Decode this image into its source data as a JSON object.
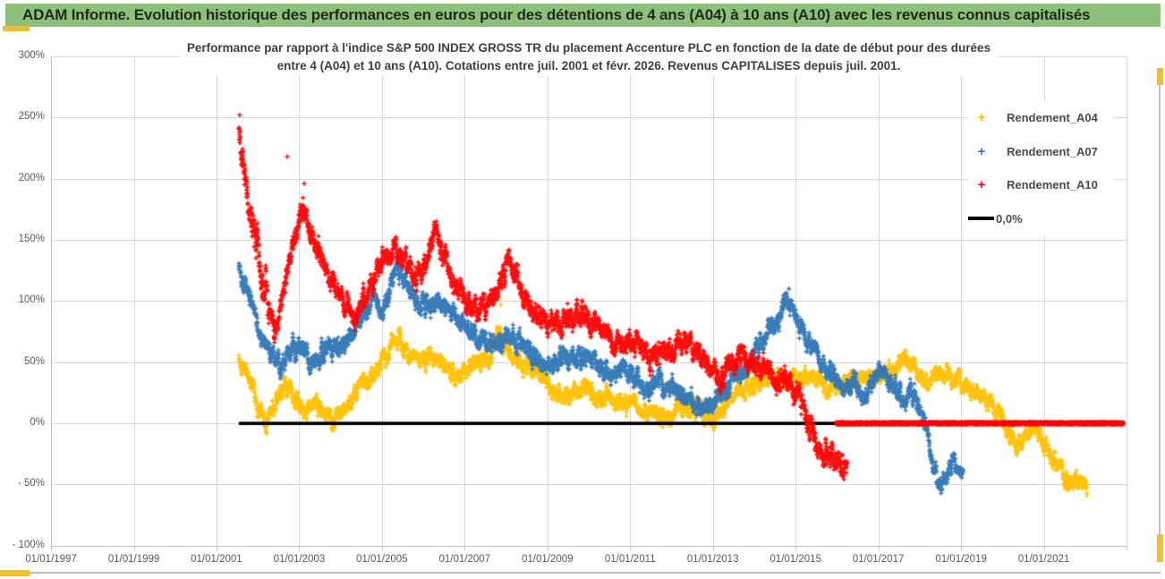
{
  "header": {
    "title": "ADAM Informe. Evolution historique des performances en euros pour des détentions de 4 ans (A04) à 10 ans (A10) avec les revenus connus capitalisés",
    "bg_color": "#8cc07b",
    "accent_color": "#f1be32"
  },
  "chart": {
    "title_line1": "Performance par rapport à l'indice S&P 500 INDEX GROSS TR  du placement Accenture PLC en fonction de la date de début pour des durées",
    "title_line2": "entre 4 (A04) et 10 ans (A10).  Cotations entre juil. 2001 et févr. 2026.  Revenus CAPITALISES depuis juil. 2001."
  },
  "chart_data": {
    "type": "scatter",
    "title": "Performance par rapport à l'indice S&P 500 INDEX GROSS TR du placement Accenture PLC en fonction de la date de début pour des durées entre 4 (A04) et 10 ans (A10). Cotations entre juil. 2001 et févr. 2026. Revenus CAPITALISES depuis juil. 2001.",
    "grid": true,
    "legend_position": "right",
    "x_axis": {
      "range": [
        1997,
        2023
      ],
      "grid_years": [
        1997,
        1999,
        2001,
        2003,
        2005,
        2007,
        2009,
        2011,
        2013,
        2015,
        2017,
        2019,
        2021,
        2023
      ],
      "tick_labels": [
        "01/01/1997",
        "01/01/1999",
        "01/01/2001",
        "01/01/2003",
        "01/01/2005",
        "01/01/2007",
        "01/01/2009",
        "01/01/2011",
        "01/01/2013",
        "01/01/2015",
        "01/01/2017",
        "01/01/2019",
        "01/01/2021"
      ],
      "tick_years": [
        1997,
        1999,
        2001,
        2003,
        2005,
        2007,
        2009,
        2011,
        2013,
        2015,
        2017,
        2019,
        2021
      ]
    },
    "y_axis": {
      "range": [
        -100,
        300
      ],
      "tick_values": [
        300,
        250,
        200,
        150,
        100,
        50,
        0,
        -50,
        -100
      ],
      "tick_labels": [
        "300%",
        "250%",
        "200%",
        "150%",
        "100%",
        "50%",
        "0%",
        "- 50%",
        "- 100%"
      ]
    },
    "series": [
      {
        "name": "Rendement_A04",
        "color": "#FFC000",
        "marker": "plus",
        "scatter_band": 11,
        "seed": 42,
        "points": [
          [
            2001.54,
            52
          ],
          [
            2001.8,
            38
          ],
          [
            2002.0,
            15
          ],
          [
            2002.2,
            0
          ],
          [
            2002.35,
            12
          ],
          [
            2002.55,
            22
          ],
          [
            2002.75,
            30
          ],
          [
            2002.95,
            20
          ],
          [
            2003.15,
            8
          ],
          [
            2003.35,
            15
          ],
          [
            2003.55,
            12
          ],
          [
            2003.8,
            3
          ],
          [
            2004.0,
            8
          ],
          [
            2004.25,
            20
          ],
          [
            2004.5,
            32
          ],
          [
            2004.75,
            40
          ],
          [
            2005.0,
            50
          ],
          [
            2005.2,
            62
          ],
          [
            2005.4,
            70
          ],
          [
            2005.65,
            58
          ],
          [
            2005.9,
            52
          ],
          [
            2006.15,
            55
          ],
          [
            2006.4,
            48
          ],
          [
            2006.65,
            42
          ],
          [
            2006.9,
            40
          ],
          [
            2007.15,
            48
          ],
          [
            2007.4,
            52
          ],
          [
            2007.65,
            55
          ],
          [
            2007.8,
            75
          ],
          [
            2007.95,
            65
          ],
          [
            2008.1,
            58
          ],
          [
            2008.3,
            50
          ],
          [
            2008.55,
            45
          ],
          [
            2008.8,
            40
          ],
          [
            2009.0,
            32
          ],
          [
            2009.25,
            20
          ],
          [
            2009.5,
            25
          ],
          [
            2009.8,
            28
          ],
          [
            2010.1,
            22
          ],
          [
            2010.4,
            20
          ],
          [
            2010.7,
            16
          ],
          [
            2011.0,
            18
          ],
          [
            2011.3,
            12
          ],
          [
            2011.6,
            10
          ],
          [
            2011.95,
            3
          ],
          [
            2012.2,
            15
          ],
          [
            2012.5,
            12
          ],
          [
            2012.8,
            8
          ],
          [
            2013.0,
            2
          ],
          [
            2013.2,
            12
          ],
          [
            2013.5,
            25
          ],
          [
            2013.8,
            30
          ],
          [
            2014.1,
            32
          ],
          [
            2014.4,
            38
          ],
          [
            2014.7,
            36
          ],
          [
            2015.0,
            40
          ],
          [
            2015.3,
            38
          ],
          [
            2015.6,
            33
          ],
          [
            2015.9,
            30
          ],
          [
            2016.2,
            32
          ],
          [
            2016.5,
            38
          ],
          [
            2016.8,
            35
          ],
          [
            2017.1,
            40
          ],
          [
            2017.4,
            45
          ],
          [
            2017.7,
            50
          ],
          [
            2017.95,
            42
          ],
          [
            2018.2,
            35
          ],
          [
            2018.5,
            42
          ],
          [
            2018.8,
            38
          ],
          [
            2019.1,
            30
          ],
          [
            2019.4,
            22
          ],
          [
            2019.7,
            18
          ],
          [
            2019.95,
            8
          ],
          [
            2020.15,
            -8
          ],
          [
            2020.35,
            -18
          ],
          [
            2020.55,
            -12
          ],
          [
            2020.75,
            -5
          ],
          [
            2020.95,
            -12
          ],
          [
            2021.15,
            -25
          ],
          [
            2021.35,
            -38
          ],
          [
            2021.55,
            -48
          ],
          [
            2021.75,
            -52
          ],
          [
            2021.9,
            -50
          ],
          [
            2022.05,
            -48
          ]
        ],
        "outliers": [
          [
            2007.84,
            103
          ],
          [
            2007.87,
            97
          ]
        ]
      },
      {
        "name": "Rendement_A07",
        "color": "#2E75B6",
        "marker": "plus",
        "scatter_band": 12,
        "seed": 1337,
        "points": [
          [
            2001.54,
            130
          ],
          [
            2001.75,
            108
          ],
          [
            2001.95,
            85
          ],
          [
            2002.15,
            68
          ],
          [
            2002.35,
            55
          ],
          [
            2002.55,
            45
          ],
          [
            2002.75,
            55
          ],
          [
            2002.95,
            62
          ],
          [
            2003.15,
            58
          ],
          [
            2003.4,
            52
          ],
          [
            2003.65,
            60
          ],
          [
            2003.9,
            65
          ],
          [
            2004.15,
            72
          ],
          [
            2004.4,
            78
          ],
          [
            2004.65,
            95
          ],
          [
            2004.8,
            108
          ],
          [
            2004.95,
            88
          ],
          [
            2005.15,
            105
          ],
          [
            2005.35,
            128
          ],
          [
            2005.55,
            115
          ],
          [
            2005.8,
            102
          ],
          [
            2006.05,
            98
          ],
          [
            2006.3,
            100
          ],
          [
            2006.55,
            95
          ],
          [
            2006.8,
            88
          ],
          [
            2007.05,
            78
          ],
          [
            2007.3,
            72
          ],
          [
            2007.55,
            66
          ],
          [
            2007.8,
            64
          ],
          [
            2008.05,
            70
          ],
          [
            2008.3,
            66
          ],
          [
            2008.55,
            60
          ],
          [
            2008.8,
            52
          ],
          [
            2009.05,
            45
          ],
          [
            2009.3,
            58
          ],
          [
            2009.55,
            50
          ],
          [
            2009.8,
            55
          ],
          [
            2010.05,
            50
          ],
          [
            2010.3,
            45
          ],
          [
            2010.55,
            40
          ],
          [
            2010.8,
            45
          ],
          [
            2011.05,
            38
          ],
          [
            2011.3,
            30
          ],
          [
            2011.55,
            35
          ],
          [
            2011.8,
            32
          ],
          [
            2012.05,
            28
          ],
          [
            2012.3,
            25
          ],
          [
            2012.55,
            18
          ],
          [
            2012.8,
            12
          ],
          [
            2013.05,
            18
          ],
          [
            2013.3,
            28
          ],
          [
            2013.55,
            38
          ],
          [
            2013.8,
            45
          ],
          [
            2014.05,
            60
          ],
          [
            2014.3,
            72
          ],
          [
            2014.55,
            85
          ],
          [
            2014.8,
            102
          ],
          [
            2014.95,
            92
          ],
          [
            2015.2,
            72
          ],
          [
            2015.45,
            60
          ],
          [
            2015.7,
            48
          ],
          [
            2015.95,
            40
          ],
          [
            2016.15,
            28
          ],
          [
            2016.4,
            34
          ],
          [
            2016.65,
            22
          ],
          [
            2016.9,
            35
          ],
          [
            2017.1,
            42
          ],
          [
            2017.35,
            30
          ],
          [
            2017.6,
            20
          ],
          [
            2017.85,
            26
          ],
          [
            2018.05,
            8
          ],
          [
            2018.2,
            -12
          ],
          [
            2018.35,
            -35
          ],
          [
            2018.5,
            -52
          ],
          [
            2018.65,
            -45
          ],
          [
            2018.8,
            -30
          ],
          [
            2018.95,
            -40
          ],
          [
            2019.05,
            -45
          ]
        ],
        "outliers": [
          [
            2014.84,
            110
          ]
        ]
      },
      {
        "name": "Rendement_A10",
        "color": "#FF0000",
        "marker": "plus",
        "scatter_band": 14,
        "seed": 2024,
        "early_boost": {
          "until": 2002.3,
          "factor": 1.6
        },
        "points": [
          [
            2001.54,
            235
          ],
          [
            2001.62,
            220
          ],
          [
            2001.7,
            198
          ],
          [
            2001.8,
            175
          ],
          [
            2001.95,
            150
          ],
          [
            2002.1,
            122
          ],
          [
            2002.25,
            95
          ],
          [
            2002.4,
            78
          ],
          [
            2002.55,
            95
          ],
          [
            2002.7,
            120
          ],
          [
            2002.85,
            145
          ],
          [
            2003.0,
            165
          ],
          [
            2003.1,
            178
          ],
          [
            2003.2,
            160
          ],
          [
            2003.35,
            148
          ],
          [
            2003.5,
            140
          ],
          [
            2003.7,
            125
          ],
          [
            2003.9,
            115
          ],
          [
            2004.1,
            100
          ],
          [
            2004.35,
            85
          ],
          [
            2004.6,
            105
          ],
          [
            2004.85,
            125
          ],
          [
            2005.05,
            135
          ],
          [
            2005.3,
            140
          ],
          [
            2005.55,
            130
          ],
          [
            2005.8,
            120
          ],
          [
            2006.05,
            128
          ],
          [
            2006.3,
            158
          ],
          [
            2006.5,
            138
          ],
          [
            2006.7,
            120
          ],
          [
            2006.95,
            105
          ],
          [
            2007.2,
            95
          ],
          [
            2007.45,
            92
          ],
          [
            2007.7,
            105
          ],
          [
            2007.9,
            122
          ],
          [
            2008.05,
            135
          ],
          [
            2008.25,
            120
          ],
          [
            2008.5,
            100
          ],
          [
            2008.75,
            90
          ],
          [
            2009.0,
            82
          ],
          [
            2009.25,
            78
          ],
          [
            2009.5,
            88
          ],
          [
            2009.75,
            92
          ],
          [
            2010.0,
            85
          ],
          [
            2010.25,
            75
          ],
          [
            2010.5,
            68
          ],
          [
            2010.75,
            65
          ],
          [
            2011.0,
            70
          ],
          [
            2011.25,
            62
          ],
          [
            2011.5,
            55
          ],
          [
            2011.75,
            60
          ],
          [
            2012.0,
            62
          ],
          [
            2012.25,
            68
          ],
          [
            2012.5,
            65
          ],
          [
            2012.75,
            52
          ],
          [
            2013.0,
            40
          ],
          [
            2013.15,
            32
          ],
          [
            2013.35,
            45
          ],
          [
            2013.55,
            52
          ],
          [
            2013.75,
            57
          ],
          [
            2013.95,
            50
          ],
          [
            2014.15,
            45
          ],
          [
            2014.35,
            42
          ],
          [
            2014.6,
            38
          ],
          [
            2014.85,
            34
          ],
          [
            2015.05,
            25
          ],
          [
            2015.25,
            8
          ],
          [
            2015.45,
            -12
          ],
          [
            2015.65,
            -28
          ],
          [
            2015.8,
            -22
          ],
          [
            2015.95,
            -35
          ],
          [
            2016.1,
            -30
          ],
          [
            2016.25,
            -42
          ]
        ],
        "outliers": [
          [
            2001.56,
            252
          ],
          [
            2002.71,
            218
          ],
          [
            2003.12,
            196
          ]
        ]
      }
    ],
    "baseline": {
      "label": "0,0%",
      "color": "#000000",
      "value": 0,
      "from": 2001.54,
      "to": 2022.93
    },
    "flat_zero_series": {
      "color": "#FF0000",
      "value": 0,
      "from": 2015.98,
      "to": 2022.93
    }
  }
}
